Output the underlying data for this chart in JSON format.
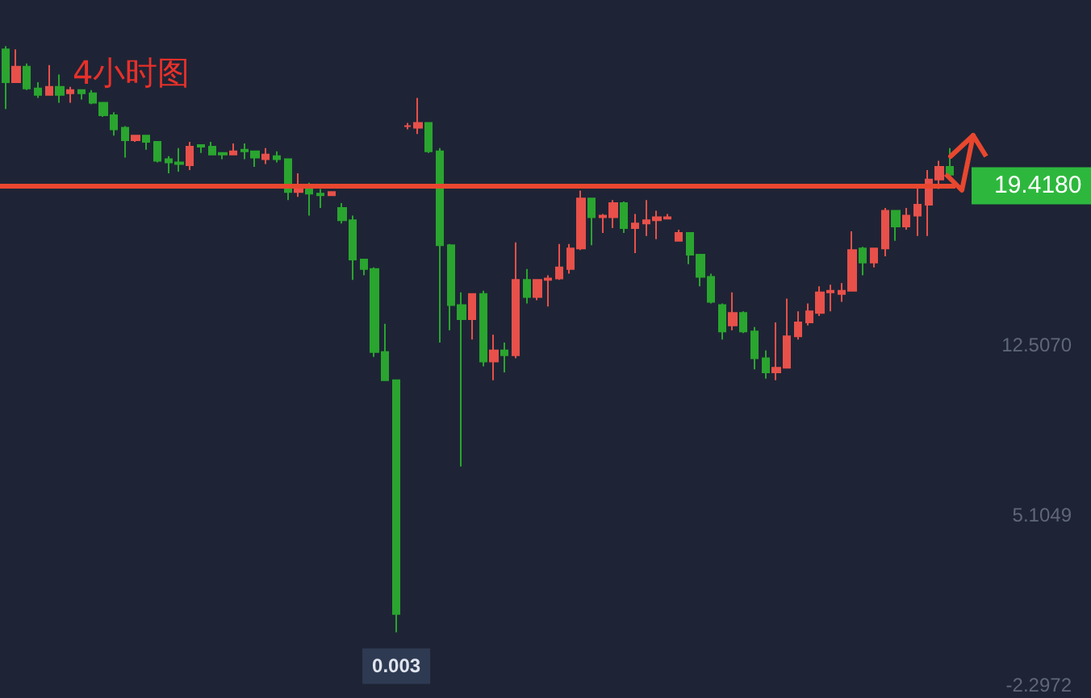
{
  "chart_data": {
    "type": "candlestick",
    "title": "4小时图",
    "categories": [
      null,
      null,
      null,
      null,
      null,
      null,
      null,
      null,
      null,
      null,
      null,
      null,
      null,
      null,
      null,
      null,
      null,
      null,
      null,
      null,
      null,
      null,
      null,
      null,
      null,
      null,
      null,
      null,
      null,
      null,
      null,
      null,
      null,
      null,
      null,
      null,
      null,
      null,
      null,
      null,
      null,
      null,
      null,
      null,
      null,
      null,
      null,
      null,
      null,
      null,
      null,
      null,
      null,
      null,
      null,
      null,
      null,
      null,
      null,
      null,
      null,
      null,
      null,
      null,
      null,
      null,
      null,
      null,
      null,
      null,
      null,
      null,
      null,
      null,
      null,
      null,
      null,
      null,
      null,
      null,
      null,
      null,
      null,
      null,
      null,
      null,
      null,
      null
    ],
    "ohlc": [
      [
        25.35,
        25.49,
        22.76,
        23.92
      ],
      [
        23.92,
        25.35,
        23.92,
        24.6
      ],
      [
        24.6,
        24.74,
        23.58,
        23.65
      ],
      [
        23.65,
        23.92,
        23.24,
        23.37
      ],
      [
        23.37,
        24.67,
        23.37,
        23.72
      ],
      [
        23.72,
        24.26,
        23.03,
        23.37
      ],
      [
        23.44,
        23.72,
        23.03,
        23.58
      ],
      [
        23.58,
        23.58,
        23.17,
        23.44
      ],
      [
        23.44,
        23.58,
        22.97,
        23.03
      ],
      [
        23.03,
        23.03,
        22.42,
        22.49
      ],
      [
        22.49,
        22.62,
        21.6,
        21.87
      ],
      [
        21.94,
        22.01,
        20.65,
        21.4
      ],
      [
        21.4,
        21.6,
        21.33,
        21.6
      ],
      [
        21.6,
        21.6,
        20.99,
        21.33
      ],
      [
        21.33,
        21.33,
        20.44,
        20.51
      ],
      [
        20.58,
        20.71,
        19.96,
        20.44
      ],
      [
        20.44,
        21.06,
        20.03,
        20.37
      ],
      [
        20.31,
        21.33,
        20.1,
        21.12
      ],
      [
        21.19,
        21.19,
        20.85,
        21.12
      ],
      [
        21.12,
        21.33,
        20.78,
        20.78
      ],
      [
        20.85,
        20.85,
        20.58,
        20.78
      ],
      [
        20.78,
        21.26,
        20.78,
        20.92
      ],
      [
        20.99,
        21.26,
        20.58,
        20.92
      ],
      [
        20.92,
        20.92,
        20.24,
        20.65
      ],
      [
        20.58,
        21.06,
        20.37,
        20.78
      ],
      [
        20.71,
        20.92,
        20.44,
        20.58
      ],
      [
        20.58,
        20.58,
        18.8,
        19.15
      ],
      [
        19.15,
        19.96,
        18.94,
        19.35
      ],
      [
        19.28,
        19.55,
        18.12,
        19.08
      ],
      [
        19.08,
        19.28,
        18.46,
        19.01
      ],
      [
        19.01,
        19.15,
        19.01,
        19.15
      ],
      [
        18.46,
        18.67,
        17.78,
        17.92
      ],
      [
        17.92,
        18.12,
        15.33,
        16.21
      ],
      [
        16.21,
        16.21,
        15.53,
        15.8
      ],
      [
        15.8,
        15.87,
        11.98,
        12.19
      ],
      [
        12.19,
        13.42,
        10.96,
        10.96
      ],
      [
        10.96,
        10.96,
        0.003,
        0.8
      ],
      [
        22.01,
        22.15,
        21.87,
        22.01
      ],
      [
        21.94,
        23.24,
        21.67,
        22.15
      ],
      [
        22.15,
        22.15,
        20.85,
        20.92
      ],
      [
        20.92,
        21.06,
        12.6,
        16.83
      ],
      [
        16.83,
        16.89,
        13.14,
        14.23
      ],
      [
        14.23,
        14.78,
        7.21,
        13.62
      ],
      [
        13.62,
        14.71,
        12.73,
        14.71
      ],
      [
        14.71,
        14.85,
        11.57,
        11.78
      ],
      [
        11.78,
        12.94,
        10.96,
        12.26
      ],
      [
        12.26,
        12.6,
        11.3,
        12.05
      ],
      [
        12.05,
        16.96,
        11.92,
        15.33
      ],
      [
        15.33,
        15.8,
        14.3,
        14.58
      ],
      [
        14.58,
        15.33,
        14.44,
        15.33
      ],
      [
        15.33,
        15.53,
        14.17,
        15.39
      ],
      [
        15.39,
        16.89,
        15.33,
        15.87
      ],
      [
        15.8,
        16.89,
        15.6,
        16.69
      ],
      [
        16.69,
        19.21,
        16.62,
        18.87
      ],
      [
        18.87,
        18.87,
        16.83,
        18.05
      ],
      [
        18.05,
        18.19,
        17.37,
        18.12
      ],
      [
        18.05,
        18.8,
        17.58,
        18.67
      ],
      [
        18.67,
        18.74,
        17.37,
        17.58
      ],
      [
        17.58,
        18.19,
        16.49,
        17.78
      ],
      [
        17.78,
        18.8,
        17.24,
        17.92
      ],
      [
        17.92,
        18.33,
        17.1,
        18.05
      ],
      [
        17.99,
        18.19,
        17.99,
        18.05
      ],
      [
        17.03,
        17.51,
        17.03,
        17.37
      ],
      [
        17.37,
        17.37,
        16.01,
        16.42
      ],
      [
        16.42,
        16.42,
        15.05,
        15.46
      ],
      [
        15.46,
        15.6,
        14.3,
        14.37
      ],
      [
        14.23,
        14.3,
        12.73,
        13.08
      ],
      [
        13.35,
        14.78,
        13.14,
        13.89
      ],
      [
        13.89,
        13.96,
        13.01,
        13.08
      ],
      [
        13.08,
        13.28,
        11.44,
        11.92
      ],
      [
        11.92,
        12.26,
        11.03,
        11.3
      ],
      [
        11.3,
        13.48,
        10.96,
        11.51
      ],
      [
        11.51,
        14.51,
        11.51,
        12.87
      ],
      [
        12.87,
        13.96,
        12.73,
        13.48
      ],
      [
        13.48,
        14.3,
        13.35,
        13.96
      ],
      [
        13.89,
        15.05,
        13.76,
        14.78
      ],
      [
        14.78,
        15.12,
        13.96,
        14.85
      ],
      [
        14.71,
        15.19,
        14.37,
        14.85
      ],
      [
        14.85,
        17.44,
        14.85,
        16.62
      ],
      [
        16.69,
        16.76,
        15.53,
        16.08
      ],
      [
        16.08,
        16.69,
        15.87,
        16.69
      ],
      [
        16.69,
        18.46,
        16.35,
        18.33
      ],
      [
        18.33,
        18.33,
        17.03,
        17.65
      ],
      [
        17.65,
        18.46,
        17.51,
        18.12
      ],
      [
        18.12,
        19.35,
        17.24,
        18.6
      ],
      [
        18.6,
        20.1,
        17.24,
        19.69
      ],
      [
        19.69,
        20.51,
        19.28,
        20.24
      ],
      [
        20.24,
        21.06,
        19.9,
        19.9
      ]
    ],
    "ylim": [
      -2.2972,
      27.5
    ],
    "yticks": [
      {
        "value": 12.507,
        "label": "12.5070"
      },
      5.1049,
      -2.2972
    ],
    "tick_labels": "y",
    "grid": false,
    "ref_lines": [
      {
        "axis": "y",
        "value": 19.418,
        "label": "19.4180",
        "color": "#e8472f"
      }
    ],
    "annotations": [
      {
        "text": "0.003",
        "y": 0.003
      }
    ]
  }
}
